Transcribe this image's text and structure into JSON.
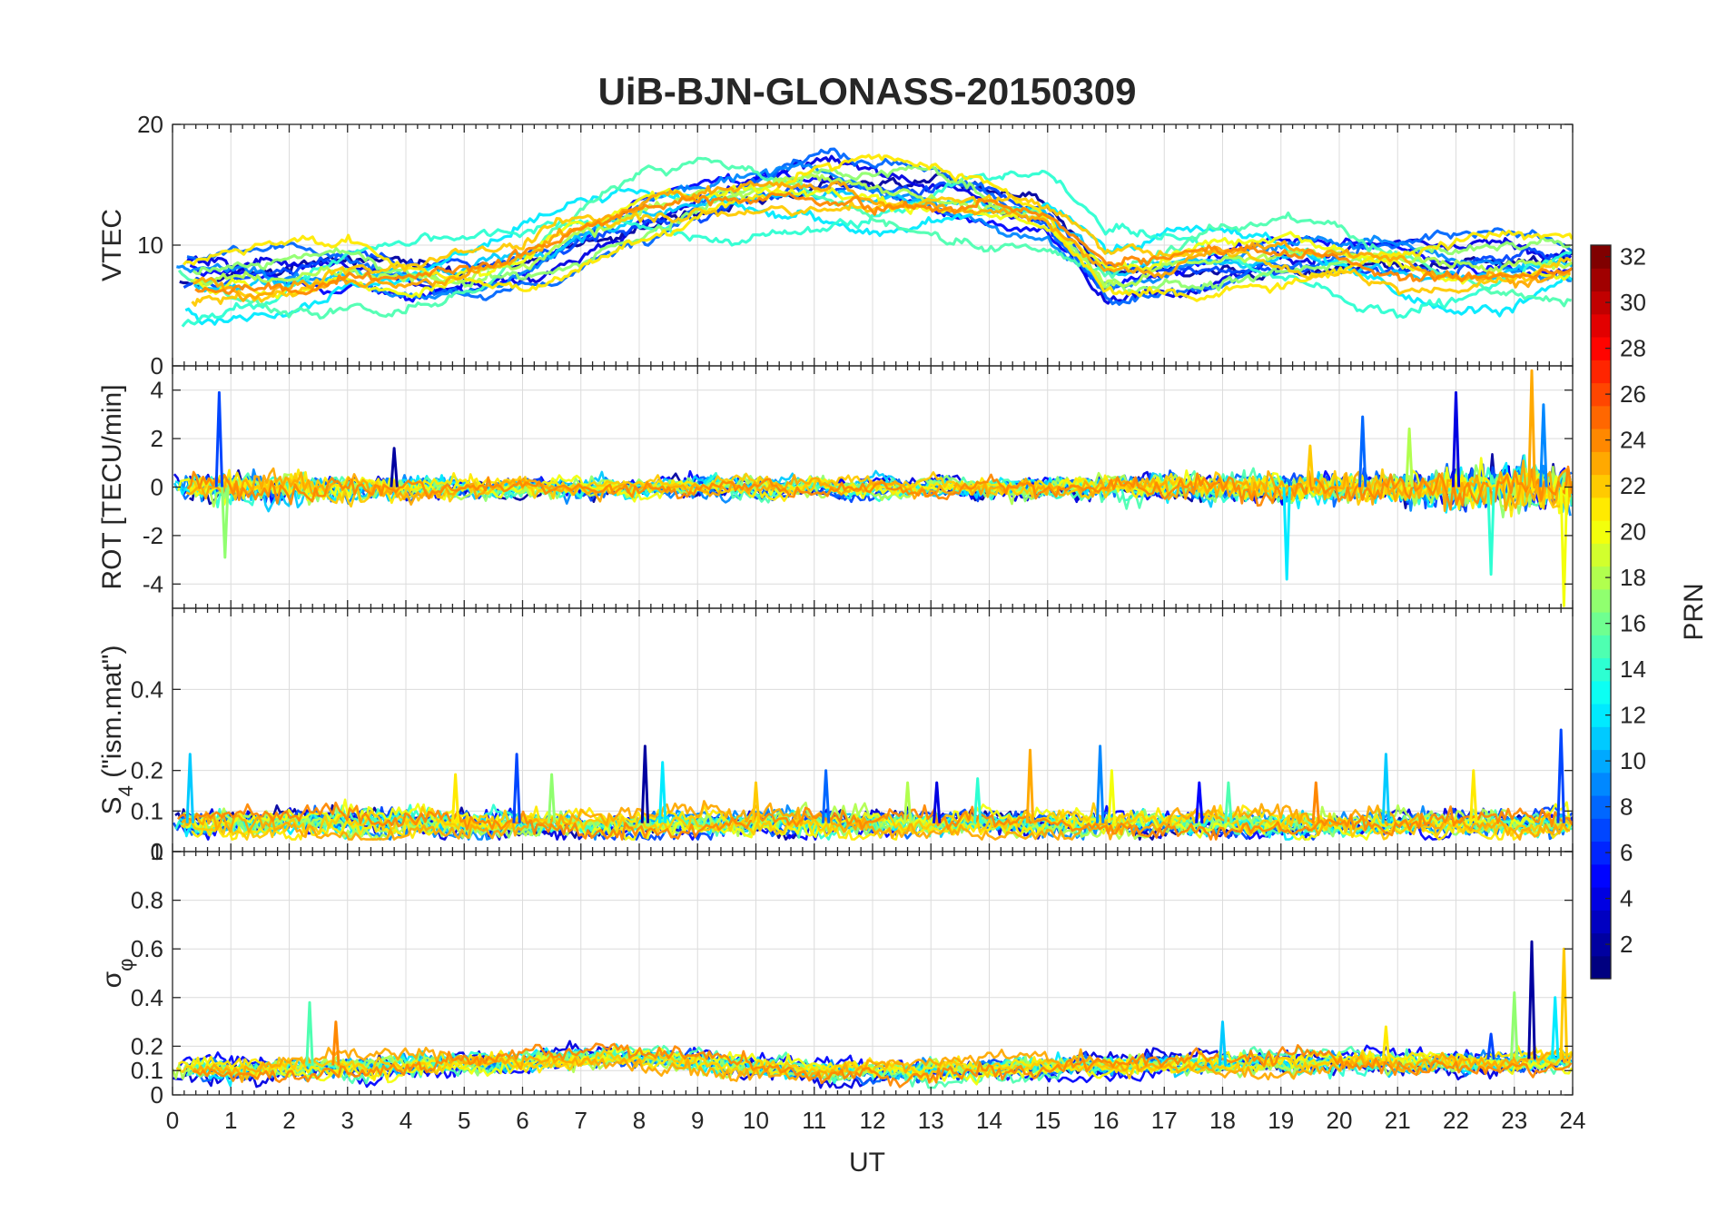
{
  "chart_data": {
    "type": "line",
    "title": "UiB-BJN-GLONASS-20150309",
    "xlabel": "UT",
    "xlim": [
      0,
      24
    ],
    "xticks": [
      "0",
      "1",
      "2",
      "3",
      "4",
      "5",
      "6",
      "7",
      "8",
      "9",
      "10",
      "11",
      "12",
      "13",
      "14",
      "15",
      "16",
      "17",
      "18",
      "19",
      "20",
      "21",
      "22",
      "23",
      "24"
    ],
    "panels": [
      {
        "id": "vtec",
        "ylabel": "VTEC",
        "ylim": [
          0,
          20
        ],
        "yticks": [
          {
            "v": 0,
            "label": "0"
          },
          {
            "v": 10,
            "label": "10"
          },
          {
            "v": 20,
            "label": "20"
          }
        ],
        "base": [
          [
            0,
            6.5
          ],
          [
            2,
            7
          ],
          [
            3,
            8
          ],
          [
            4,
            7.5
          ],
          [
            5,
            8
          ],
          [
            6,
            9
          ],
          [
            7,
            11
          ],
          [
            8,
            12.5
          ],
          [
            9,
            13.5
          ],
          [
            10,
            14
          ],
          [
            11,
            14.5
          ],
          [
            12,
            14
          ],
          [
            13,
            14
          ],
          [
            14,
            13.5
          ],
          [
            15,
            12.5
          ],
          [
            16,
            8
          ],
          [
            17,
            8.5
          ],
          [
            18,
            9
          ],
          [
            19,
            9
          ],
          [
            20,
            8.5
          ],
          [
            21,
            8
          ],
          [
            22,
            7.5
          ],
          [
            23,
            8
          ],
          [
            24,
            8.5
          ]
        ],
        "noise": 0.6,
        "drift": 3.5,
        "spikes": []
      },
      {
        "id": "rot",
        "ylabel": "ROT [TECU/min]",
        "ylim": [
          -5,
          5
        ],
        "yticks": [
          {
            "v": -4,
            "label": "-4"
          },
          {
            "v": -2,
            "label": "-2"
          },
          {
            "v": 0,
            "label": "0"
          },
          {
            "v": 2,
            "label": "2"
          },
          {
            "v": 4,
            "label": "4"
          }
        ],
        "base": [
          [
            0,
            0
          ],
          [
            24,
            0
          ]
        ],
        "noise": 0.35,
        "noise_scale": [
          [
            0,
            1.3
          ],
          [
            3,
            1.1
          ],
          [
            5,
            0.7
          ],
          [
            9,
            0.5
          ],
          [
            13,
            0.5
          ],
          [
            16,
            0.8
          ],
          [
            19,
            1.3
          ],
          [
            21,
            1.5
          ],
          [
            22,
            2.2
          ],
          [
            24,
            2.8
          ]
        ],
        "drift": 0,
        "spikes": [
          [
            0.8,
            3.9
          ],
          [
            0.9,
            -2.9
          ],
          [
            3.8,
            1.6
          ],
          [
            19.1,
            -3.8
          ],
          [
            19.5,
            1.7
          ],
          [
            20.4,
            2.9
          ],
          [
            21.2,
            2.4
          ],
          [
            22.0,
            3.9
          ],
          [
            22.6,
            -3.6
          ],
          [
            23.3,
            4.8
          ],
          [
            23.5,
            3.4
          ],
          [
            23.85,
            -4.9
          ]
        ]
      },
      {
        "id": "s4",
        "ylabel_main": "S",
        "ylabel_sub": "4",
        "ylabel_rest": " (\"ism.mat\")",
        "ylim": [
          0,
          0.6
        ],
        "yticks": [
          {
            "v": 0,
            "label": "0"
          },
          {
            "v": 0.1,
            "label": "0.1"
          },
          {
            "v": 0.2,
            "label": "0.2"
          },
          {
            "v": 0.4,
            "label": "0.4"
          }
        ],
        "base": [
          [
            0,
            0.07
          ],
          [
            24,
            0.07
          ]
        ],
        "noise": 0.018,
        "drift": 0.03,
        "spikes": [
          [
            0.3,
            0.24
          ],
          [
            4.85,
            0.19
          ],
          [
            5.9,
            0.24
          ],
          [
            6.5,
            0.19
          ],
          [
            8.1,
            0.26
          ],
          [
            8.4,
            0.22
          ],
          [
            10.0,
            0.17
          ],
          [
            11.2,
            0.2
          ],
          [
            12.6,
            0.17
          ],
          [
            13.1,
            0.17
          ],
          [
            13.8,
            0.18
          ],
          [
            14.7,
            0.25
          ],
          [
            15.9,
            0.26
          ],
          [
            16.1,
            0.2
          ],
          [
            17.6,
            0.17
          ],
          [
            18.1,
            0.17
          ],
          [
            19.6,
            0.17
          ],
          [
            20.8,
            0.24
          ],
          [
            22.3,
            0.2
          ],
          [
            23.8,
            0.3
          ]
        ]
      },
      {
        "id": "sigma",
        "ylabel_main": "σ",
        "ylabel_sub": "φ",
        "ylim": [
          0,
          1
        ],
        "yticks": [
          {
            "v": 0,
            "label": "0"
          },
          {
            "v": 0.1,
            "label": "0.1"
          },
          {
            "v": 0.2,
            "label": "0.2"
          },
          {
            "v": 0.4,
            "label": "0.4"
          },
          {
            "v": 0.6,
            "label": "0.6"
          },
          {
            "v": 0.8,
            "label": "0.8"
          },
          {
            "v": 1,
            "label": "1"
          }
        ],
        "base": [
          [
            0,
            0.11
          ],
          [
            5,
            0.13
          ],
          [
            8,
            0.15
          ],
          [
            11,
            0.1
          ],
          [
            14,
            0.12
          ],
          [
            18,
            0.12
          ],
          [
            21,
            0.14
          ],
          [
            24,
            0.15
          ]
        ],
        "noise": 0.025,
        "drift": 0.04,
        "spikes": [
          [
            2.35,
            0.38
          ],
          [
            2.8,
            0.3
          ],
          [
            18.0,
            0.3
          ],
          [
            20.8,
            0.28
          ],
          [
            22.6,
            0.25
          ],
          [
            23.0,
            0.42
          ],
          [
            23.3,
            0.63
          ],
          [
            23.7,
            0.4
          ],
          [
            23.85,
            0.6
          ]
        ]
      }
    ],
    "colorbar": {
      "label": "PRN",
      "range": [
        1,
        32
      ],
      "ticks": [
        "2",
        "4",
        "6",
        "8",
        "10",
        "12",
        "14",
        "16",
        "18",
        "20",
        "22",
        "24",
        "26",
        "28",
        "30",
        "32"
      ],
      "colormap": "jet"
    },
    "series_prns": [
      2,
      4,
      5,
      7,
      8,
      9,
      11,
      12,
      14,
      15,
      17,
      18,
      20,
      21,
      22,
      23,
      24
    ]
  }
}
